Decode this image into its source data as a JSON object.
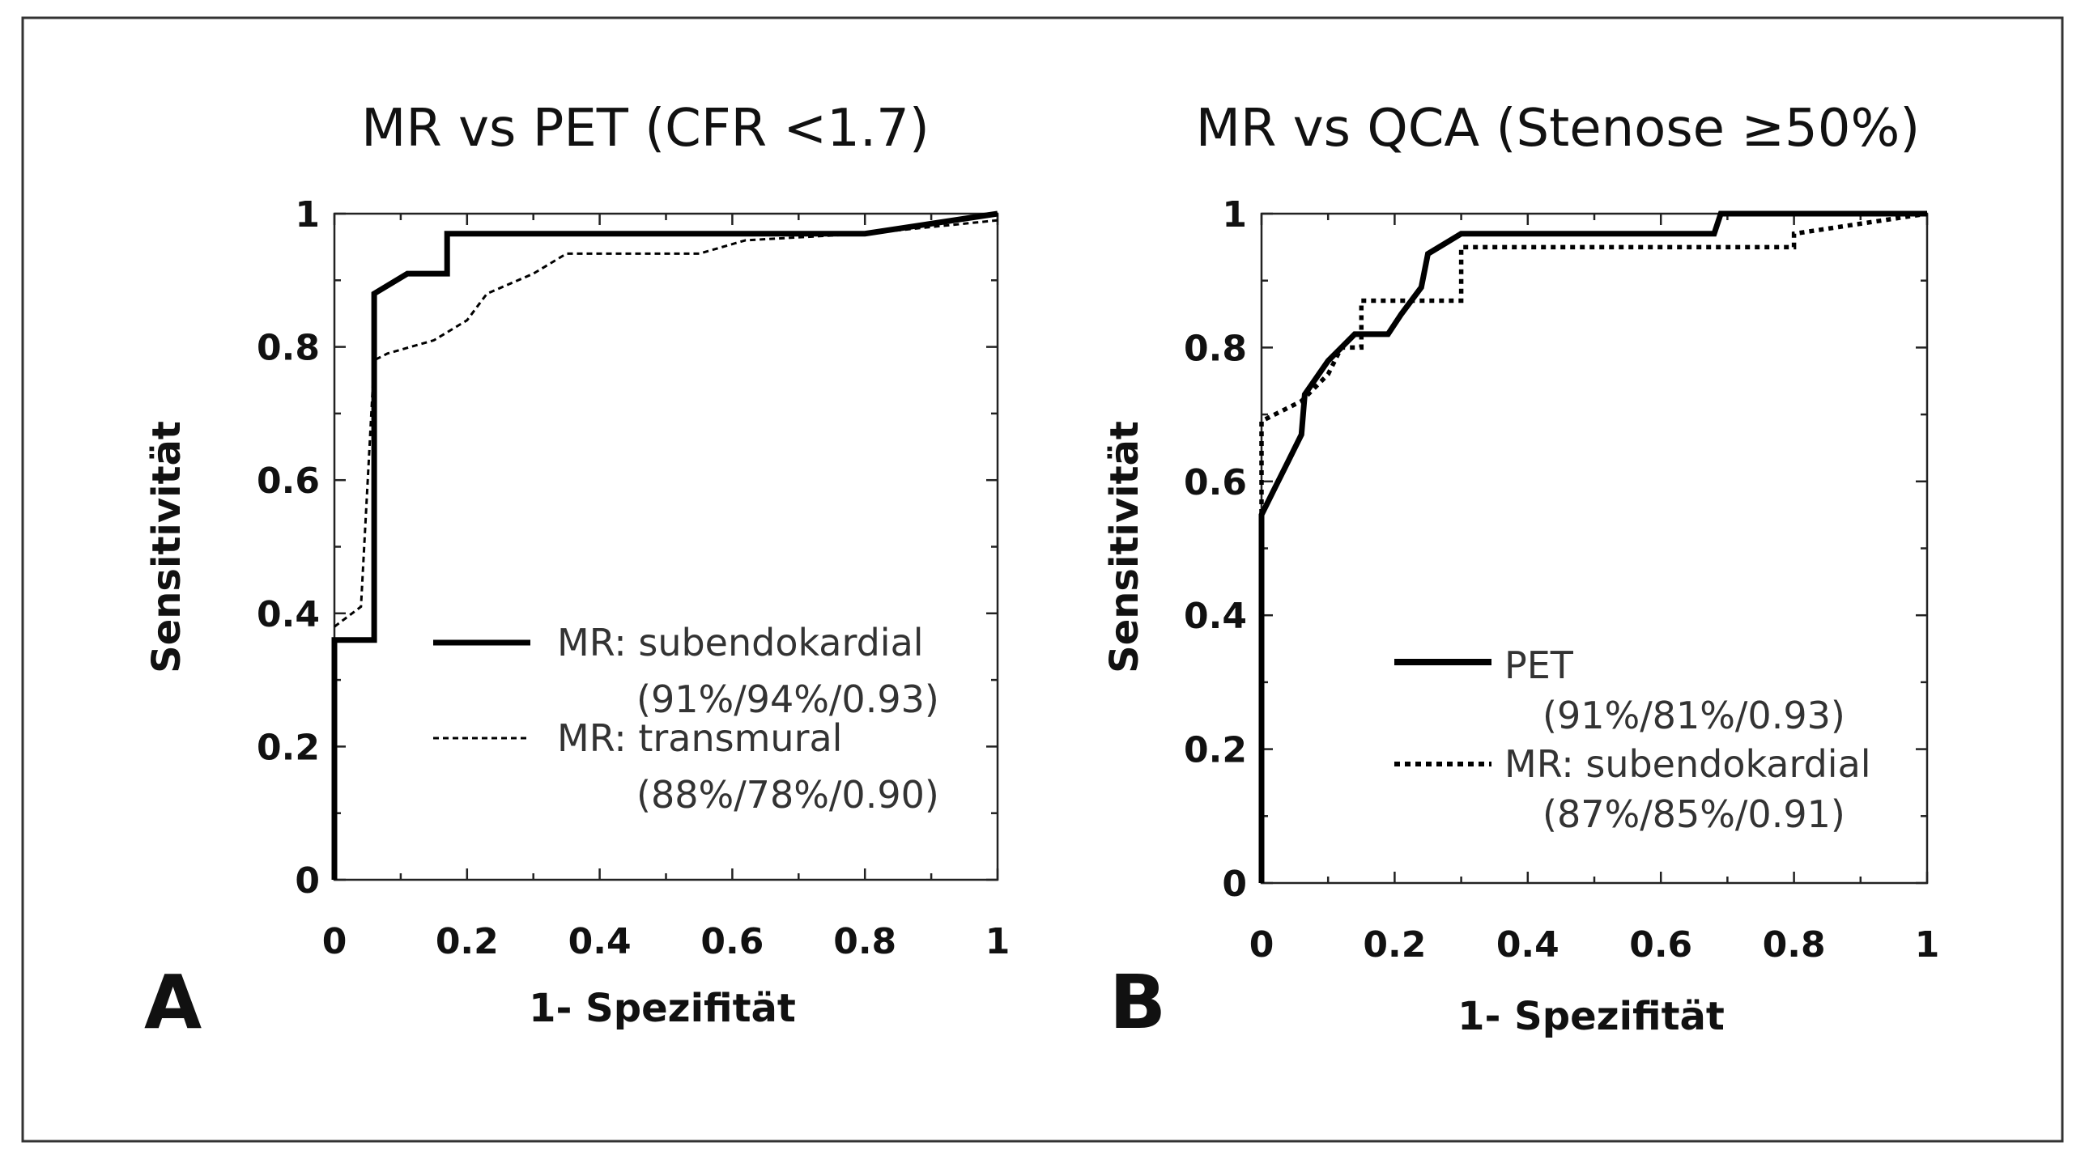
{
  "chart_data": [
    {
      "type": "line",
      "panel": "A",
      "title": "MR vs PET (CFR <1.7)",
      "xlabel": "1- Spezifität",
      "ylabel": "Sensitivität",
      "xlim": [
        0,
        1
      ],
      "ylim": [
        0,
        1
      ],
      "xticks": [
        "0",
        "0.2",
        "0.4",
        "0.6",
        "0.8",
        "1"
      ],
      "yticks": [
        "0",
        "0.2",
        "0.4",
        "0.6",
        "0.8",
        "1"
      ],
      "series": [
        {
          "name": "MR: subendokardial",
          "stats": "(91%/94%/0.93)",
          "style": "solid",
          "x": [
            0,
            0,
            0.06,
            0.06,
            0.11,
            0.17,
            0.17,
            0.8,
            1.0
          ],
          "y": [
            0,
            0.36,
            0.36,
            0.88,
            0.91,
            0.91,
            0.97,
            0.97,
            1.0
          ]
        },
        {
          "name": "MR: transmural",
          "stats": "(88%/78%/0.90)",
          "style": "dashed",
          "x": [
            0,
            0.04,
            0.06,
            0.08,
            0.15,
            0.2,
            0.23,
            0.3,
            0.35,
            0.45,
            0.55,
            0.62,
            0.8,
            1.0
          ],
          "y": [
            0.38,
            0.41,
            0.78,
            0.79,
            0.81,
            0.84,
            0.88,
            0.91,
            0.94,
            0.94,
            0.94,
            0.96,
            0.97,
            0.99
          ]
        }
      ]
    },
    {
      "type": "line",
      "panel": "B",
      "title": "MR vs QCA (Stenose ≥50%)",
      "xlabel": "1- Spezifität",
      "ylabel": "Sensitivität",
      "xlim": [
        0,
        1
      ],
      "ylim": [
        0,
        1
      ],
      "xticks": [
        "0",
        "0.2",
        "0.4",
        "0.6",
        "0.8",
        "1"
      ],
      "yticks": [
        "0",
        "0.2",
        "0.4",
        "0.6",
        "0.8",
        "1"
      ],
      "series": [
        {
          "name": "PET",
          "stats": "(91%/81%/0.93)",
          "style": "solid",
          "x": [
            0,
            0,
            0.02,
            0.04,
            0.06,
            0.065,
            0.1,
            0.14,
            0.16,
            0.19,
            0.21,
            0.24,
            0.25,
            0.3,
            0.33,
            0.68,
            0.69,
            1.0
          ],
          "y": [
            0,
            0.55,
            0.59,
            0.63,
            0.67,
            0.73,
            0.78,
            0.82,
            0.82,
            0.82,
            0.85,
            0.89,
            0.94,
            0.97,
            0.97,
            0.97,
            1.0,
            1.0
          ]
        },
        {
          "name": "MR: subendokardial",
          "stats": "(87%/85%/0.91)",
          "style": "dotted",
          "x": [
            0,
            0,
            0.02,
            0.06,
            0.1,
            0.12,
            0.15,
            0.15,
            0.3,
            0.3,
            0.8,
            0.8,
            1.0
          ],
          "y": [
            0,
            0.69,
            0.7,
            0.72,
            0.76,
            0.8,
            0.8,
            0.87,
            0.87,
            0.95,
            0.95,
            0.97,
            1.0
          ]
        }
      ]
    }
  ]
}
